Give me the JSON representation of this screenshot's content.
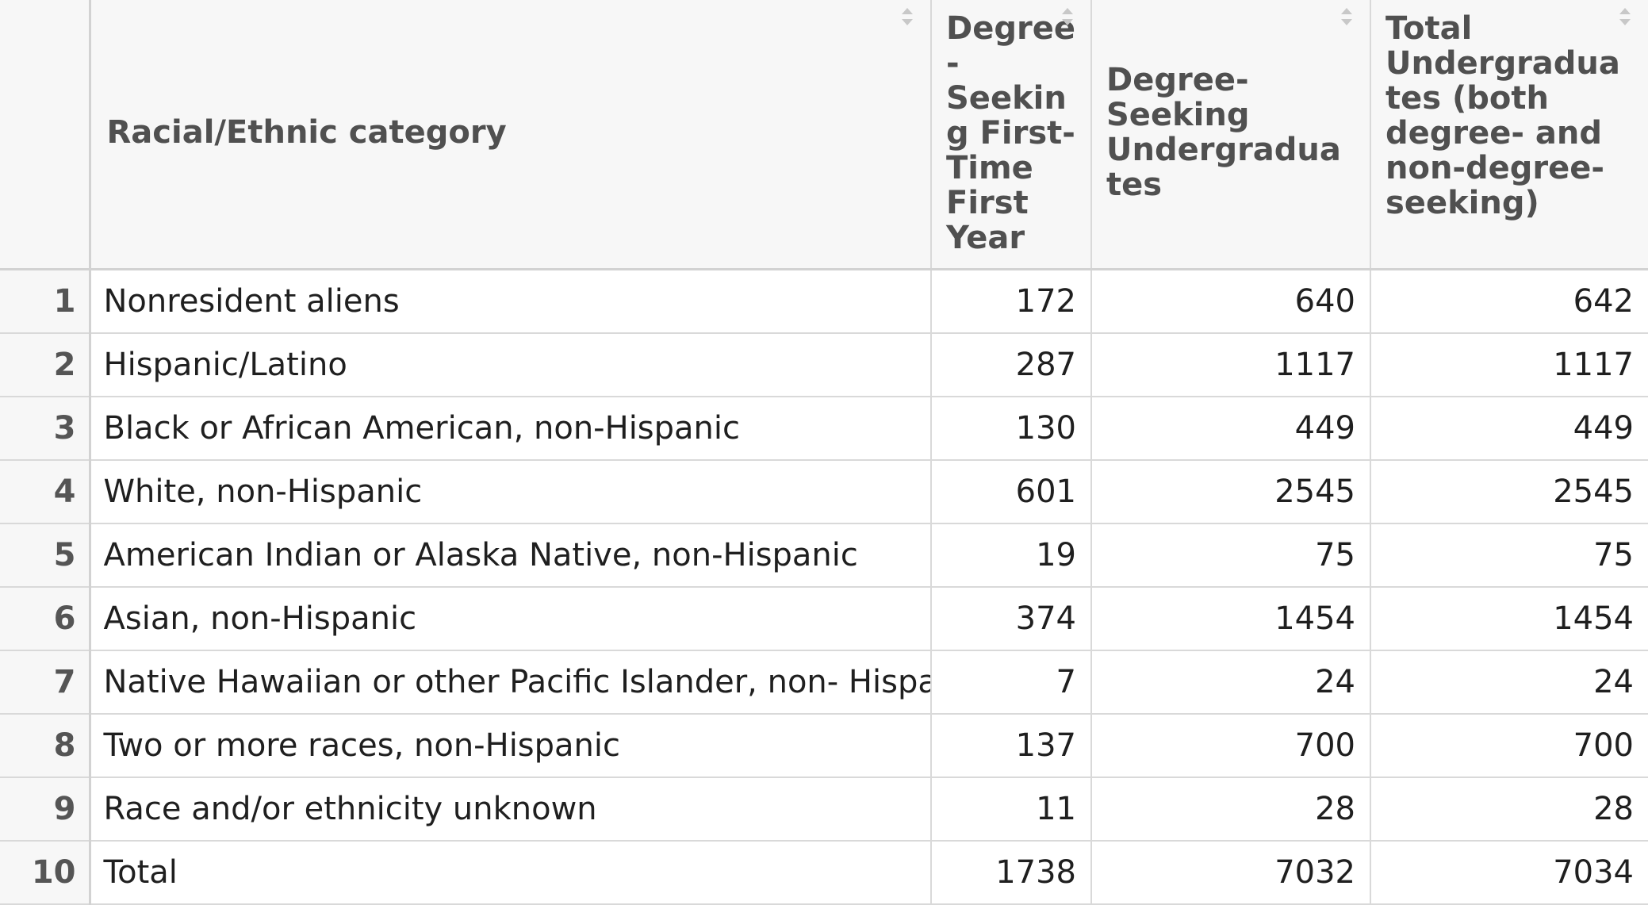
{
  "table": {
    "columns": [
      {
        "key": "index",
        "label": ""
      },
      {
        "key": "category",
        "label": "Racial/Ethnic category"
      },
      {
        "key": "first_time_first_year",
        "label": "Degree-Seeking First-Time First Year"
      },
      {
        "key": "degree_seeking_undergrads",
        "label": "Degree-Seeking Undergraduates"
      },
      {
        "key": "total_undergrads",
        "label": "Total Undergraduates (both degree- and non-degree-seeking)"
      }
    ],
    "rows": [
      {
        "index": "1",
        "category": "Nonresident aliens",
        "ftfy": "172",
        "dsu": "640",
        "total": "642"
      },
      {
        "index": "2",
        "category": "Hispanic/Latino",
        "ftfy": "287",
        "dsu": "1117",
        "total": "1117"
      },
      {
        "index": "3",
        "category": "Black or African American, non-Hispanic",
        "ftfy": "130",
        "dsu": "449",
        "total": "449"
      },
      {
        "index": "4",
        "category": "White, non-Hispanic",
        "ftfy": "601",
        "dsu": "2545",
        "total": "2545"
      },
      {
        "index": "5",
        "category": "American Indian or Alaska Native, non-Hispanic",
        "ftfy": "19",
        "dsu": "75",
        "total": "75"
      },
      {
        "index": "6",
        "category": "Asian, non-Hispanic",
        "ftfy": "374",
        "dsu": "1454",
        "total": "1454"
      },
      {
        "index": "7",
        "category": "Native Hawaiian or other Pacific Islander, non- Hispanic",
        "ftfy": "7",
        "dsu": "24",
        "total": "24"
      },
      {
        "index": "8",
        "category": "Two or more races, non-Hispanic",
        "ftfy": "137",
        "dsu": "700",
        "total": "700"
      },
      {
        "index": "9",
        "category": "Race and/or ethnicity unknown",
        "ftfy": "11",
        "dsu": "28",
        "total": "28"
      },
      {
        "index": "10",
        "category": "Total",
        "ftfy": "1738",
        "dsu": "7032",
        "total": "7034"
      }
    ]
  },
  "icons": {
    "sort": "sort-arrows-icon"
  },
  "colors": {
    "header_bg": "#f7f7f7",
    "header_text": "#505050",
    "grid": "#d9d9d9"
  }
}
